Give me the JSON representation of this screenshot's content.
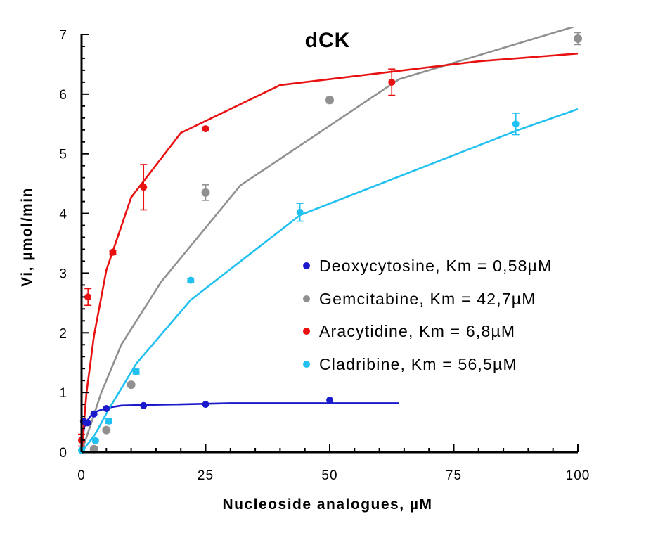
{
  "chart_data": {
    "type": "scatter",
    "title": "dCK",
    "xlabel": "Nucleoside analogues, µM",
    "ylabel": "Vi, µmol/min",
    "xlim": [
      0,
      100
    ],
    "ylim": [
      0,
      7
    ],
    "xticks": [
      0,
      25,
      50,
      75,
      100
    ],
    "yticks": [
      0,
      1,
      2,
      3,
      4,
      5,
      6,
      7
    ],
    "x_tick_labels": [
      "0",
      "25",
      "50",
      "75",
      "100"
    ],
    "y_tick_labels": [
      "0",
      "1",
      "2",
      "3",
      "4",
      "5",
      "6",
      "7"
    ],
    "grid": false,
    "legend_position": "center-right",
    "series": [
      {
        "name": "Deoxycytosine, Km = 0,58µM",
        "color": "#1a1acc",
        "points": [
          {
            "x": 0.4,
            "y": 0.52
          },
          {
            "x": 1.2,
            "y": 0.49
          },
          {
            "x": 2.5,
            "y": 0.64
          },
          {
            "x": 5,
            "y": 0.73
          },
          {
            "x": 12.5,
            "y": 0.78
          },
          {
            "x": 25,
            "y": 0.8
          },
          {
            "x": 50,
            "y": 0.87
          }
        ],
        "fit": [
          [
            0,
            0
          ],
          [
            0.5,
            0.41
          ],
          [
            1,
            0.51
          ],
          [
            2,
            0.62
          ],
          [
            3,
            0.68
          ],
          [
            5,
            0.74
          ],
          [
            8,
            0.78
          ],
          [
            12,
            0.79
          ],
          [
            20,
            0.8
          ],
          [
            30,
            0.82
          ],
          [
            64,
            0.82
          ]
        ]
      },
      {
        "name": "Gemcitabine, Km = 42,7µM",
        "color": "#909090",
        "points": [
          {
            "x": 2.5,
            "y": 0.05,
            "err": 0.03
          },
          {
            "x": 5,
            "y": 0.37,
            "err": 0.04
          },
          {
            "x": 10,
            "y": 1.13,
            "err": 0.04
          },
          {
            "x": 25,
            "y": 4.35,
            "err": 0.13
          },
          {
            "x": 50,
            "y": 5.9,
            "err": 0.05
          },
          {
            "x": 100,
            "y": 6.93,
            "err": 0.1
          }
        ],
        "fit": [
          [
            0,
            0
          ],
          [
            2,
            0.5
          ],
          [
            4,
            1.0
          ],
          [
            8,
            1.8
          ],
          [
            16,
            2.85
          ],
          [
            32,
            4.47
          ],
          [
            64,
            6.25
          ],
          [
            100,
            7.15
          ]
        ]
      },
      {
        "name": "Aracytidine, Km = 6,8µM",
        "color": "#e81010",
        "points": [
          {
            "x": 0,
            "y": 0.2,
            "err": 0.1
          },
          {
            "x": 1.3,
            "y": 2.6,
            "err": 0.14
          },
          {
            "x": 6.3,
            "y": 3.35,
            "err": 0.03
          },
          {
            "x": 12.5,
            "y": 4.44,
            "err": 0.38
          },
          {
            "x": 25,
            "y": 5.42,
            "err": 0.03
          },
          {
            "x": 62.5,
            "y": 6.2,
            "err": 0.22
          }
        ],
        "fit": [
          [
            0,
            0
          ],
          [
            1,
            1.0
          ],
          [
            2.5,
            1.95
          ],
          [
            5,
            3.05
          ],
          [
            10,
            4.27
          ],
          [
            20,
            5.35
          ],
          [
            40,
            6.15
          ],
          [
            80,
            6.55
          ],
          [
            100,
            6.68
          ]
        ]
      },
      {
        "name": "Cladribine, Km = 56,5µM",
        "color": "#20c0f0",
        "points": [
          {
            "x": 0,
            "y": 0.03,
            "err": 0.01
          },
          {
            "x": 2.8,
            "y": 0.19,
            "err": 0.02
          },
          {
            "x": 5.5,
            "y": 0.52,
            "err": 0.04
          },
          {
            "x": 11,
            "y": 1.35,
            "err": 0.04
          },
          {
            "x": 22,
            "y": 2.88,
            "err": 0.03
          },
          {
            "x": 44,
            "y": 4.02,
            "err": 0.15
          },
          {
            "x": 87.5,
            "y": 5.5,
            "err": 0.18
          }
        ],
        "fit": [
          [
            0,
            0
          ],
          [
            2.75,
            0.3
          ],
          [
            5.5,
            0.72
          ],
          [
            11,
            1.48
          ],
          [
            22,
            2.55
          ],
          [
            44,
            3.97
          ],
          [
            88,
            5.4
          ],
          [
            100,
            5.75
          ]
        ]
      }
    ]
  }
}
